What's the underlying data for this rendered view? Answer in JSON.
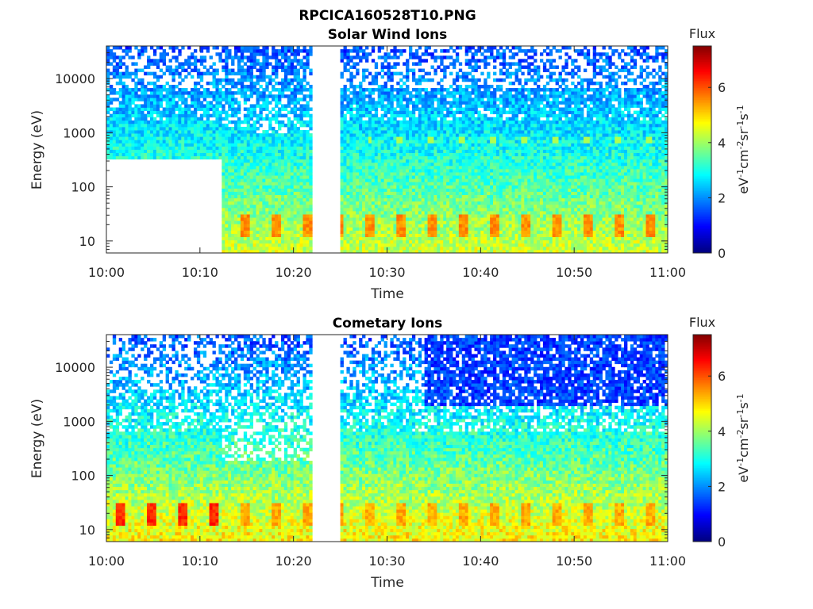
{
  "figure": {
    "title": "RPCICA160528T10.PNG"
  },
  "colorbar": {
    "label": "Flux",
    "unit_main": "eV",
    "unit_parts": [
      {
        "text": "eV",
        "sup": false
      },
      {
        "text": "-1",
        "sup": true
      },
      {
        "text": "cm",
        "sup": false
      },
      {
        "text": "-2",
        "sup": true
      },
      {
        "text": "sr",
        "sup": false
      },
      {
        "text": "-1",
        "sup": true
      },
      {
        "text": "s",
        "sup": false
      },
      {
        "text": "-1",
        "sup": true
      }
    ],
    "ticks": [
      "0",
      "2",
      "4",
      "6"
    ],
    "tick_values": [
      0,
      2,
      4,
      6
    ],
    "range": [
      0,
      7.5
    ],
    "colormap": "jet"
  },
  "chart_data": [
    {
      "type": "heatmap",
      "title": "Solar Wind Ions",
      "xlabel": "Time",
      "ylabel": "Energy (eV)",
      "x_ticks": [
        "10:00",
        "10:10",
        "10:20",
        "10:30",
        "10:40",
        "10:50",
        "11:00"
      ],
      "x_range_minutes": [
        0,
        60
      ],
      "y_scale": "log",
      "y_ticks": [
        "10",
        "100",
        "1000",
        "10000"
      ],
      "y_tick_values": [
        10,
        100,
        1000,
        10000
      ],
      "y_range": [
        6,
        40000
      ],
      "data_gap_minutes": [
        22,
        25
      ],
      "empty_region": {
        "minutes": [
          0,
          12.2
        ],
        "energy_eV": [
          6,
          320
        ]
      },
      "notes": "Intermittent high-flux bursts (~5-6) near 15-25 eV every ~3.3 min; weak bands near 750 and 1500 eV after 10:28"
    },
    {
      "type": "heatmap",
      "title": "Cometary Ions",
      "xlabel": "Time",
      "ylabel": "Energy (eV)",
      "x_ticks": [
        "10:00",
        "10:10",
        "10:20",
        "10:30",
        "10:40",
        "10:50",
        "11:00"
      ],
      "x_range_minutes": [
        0,
        60
      ],
      "y_scale": "log",
      "y_ticks": [
        "10",
        "100",
        "1000",
        "10000"
      ],
      "y_tick_values": [
        10,
        100,
        1000,
        10000
      ],
      "y_range": [
        6,
        40000
      ],
      "data_gap_minutes": [
        22,
        25
      ],
      "notes": "Strong flux (~6) at 15-25 eV in periodic bursts; sparse low flux above 1000 eV"
    }
  ]
}
